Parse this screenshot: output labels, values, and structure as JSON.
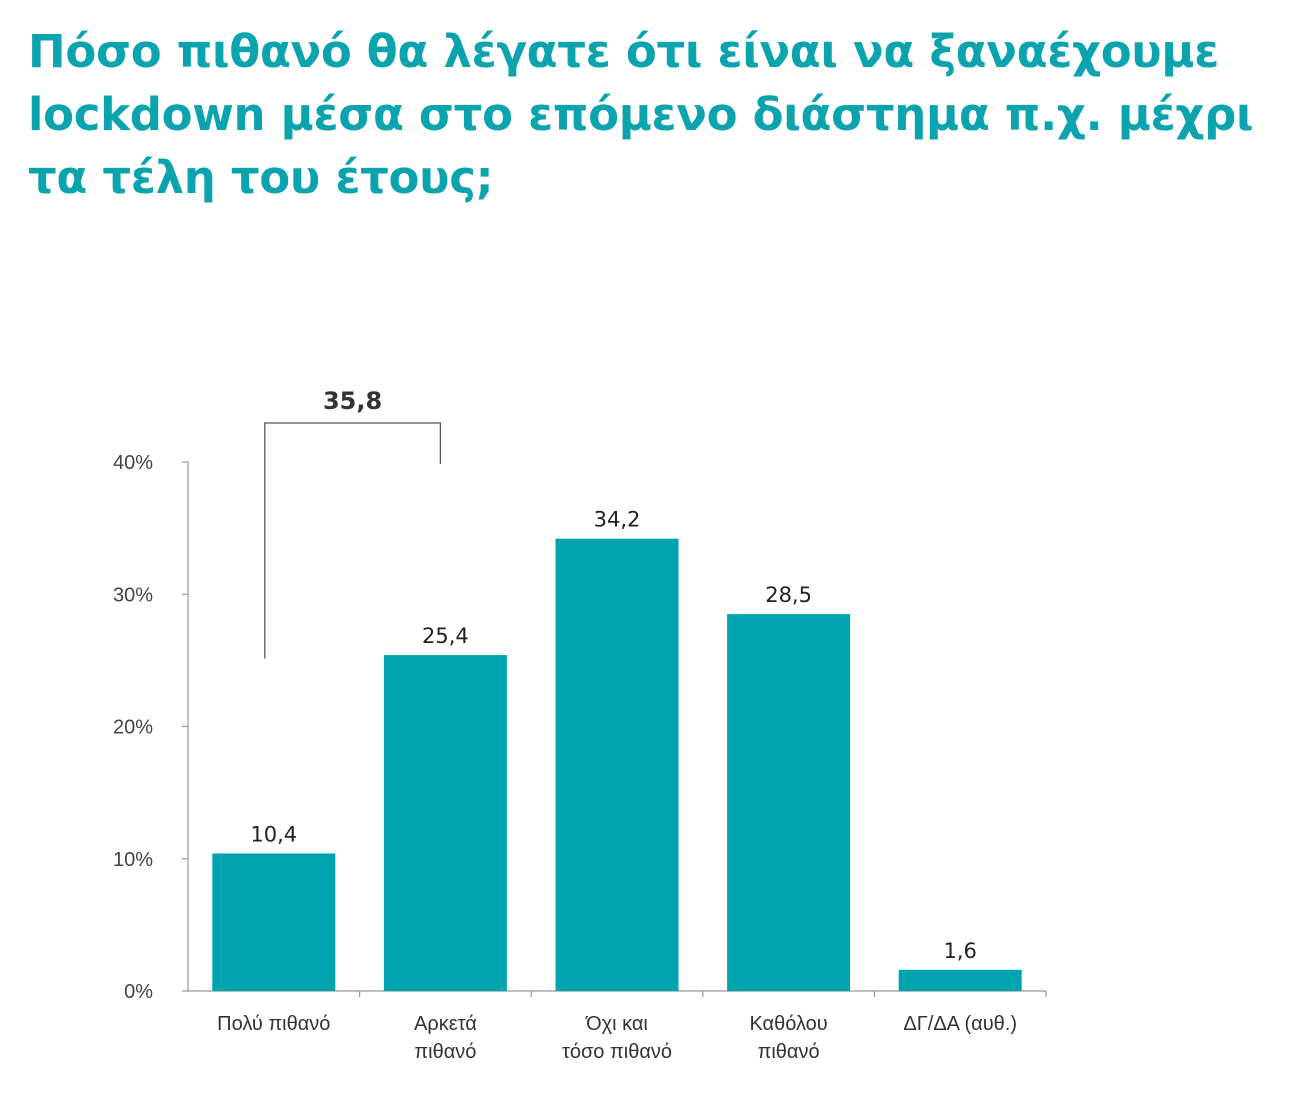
{
  "chart_data": {
    "type": "bar",
    "title": "Πόσο πιθανό θα λέγατε ότι είναι να ξαναέχουμε lockdown μέσα στο επόμενο διάστημα π.χ. μέχρι τα τέλη του έτους;",
    "categories": [
      [
        "Πολύ πιθανό"
      ],
      [
        "Αρκετά",
        "πιθανό"
      ],
      [
        "Όχι και",
        "τόσο πιθανό"
      ],
      [
        "Καθόλου",
        "πιθανό"
      ],
      [
        "ΔΓ/ΔΑ (αυθ.)"
      ]
    ],
    "values": [
      10.4,
      25.4,
      34.2,
      28.5,
      1.6
    ],
    "value_labels": [
      "10,4",
      "25,4",
      "34,2",
      "28,5",
      "1,6"
    ],
    "ylim": [
      0,
      40
    ],
    "yticks": [
      "0%",
      "10%",
      "20%",
      "30%",
      "40%"
    ],
    "xlabel": "",
    "ylabel": "",
    "grid": false,
    "bracket": {
      "from_category": 0,
      "to_category": 1,
      "label": "35,8"
    },
    "bar_color": "#00a4ae"
  }
}
